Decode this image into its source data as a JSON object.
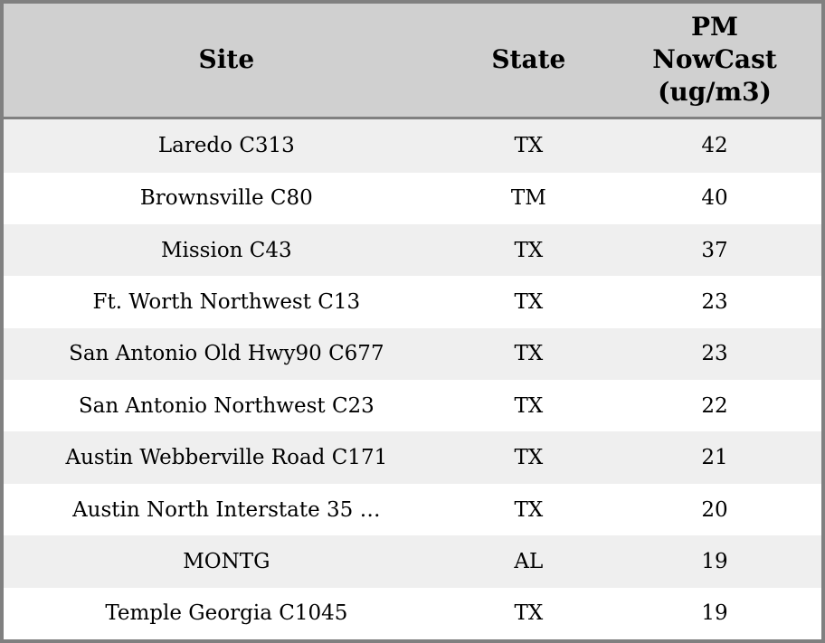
{
  "chart_data": {
    "type": "table",
    "columns": [
      {
        "id": "site",
        "label": "Site"
      },
      {
        "id": "state",
        "label": "State"
      },
      {
        "id": "pm_nowcast",
        "label": "PM\nNowCast\n(ug/m3)",
        "label_plain": "PM NowCast (ug/m3)"
      }
    ],
    "rows": [
      {
        "site": "Laredo C313",
        "state": "TX",
        "pm_nowcast": 42
      },
      {
        "site": "Brownsville C80",
        "state": "TM",
        "pm_nowcast": 40
      },
      {
        "site": "Mission C43",
        "state": "TX",
        "pm_nowcast": 37
      },
      {
        "site": "Ft. Worth Northwest C13",
        "state": "TX",
        "pm_nowcast": 23
      },
      {
        "site": "San Antonio Old Hwy90 C677",
        "state": "TX",
        "pm_nowcast": 23
      },
      {
        "site": "San Antonio Northwest C23",
        "state": "TX",
        "pm_nowcast": 22
      },
      {
        "site": "Austin Webberville Road C171",
        "state": "TX",
        "pm_nowcast": 21
      },
      {
        "site": "Austin North Interstate 35 …",
        "state": "TX",
        "pm_nowcast": 20
      },
      {
        "site": "MONTG",
        "state": "AL",
        "pm_nowcast": 19
      },
      {
        "site": "Temple Georgia C1045",
        "state": "TX",
        "pm_nowcast": 19
      }
    ]
  },
  "colors": {
    "frame_border": "#808080",
    "header_bg": "#d0d0d0",
    "header_divider": "#808080",
    "row_alt_bg": "#efefef",
    "row_bg": "#ffffff",
    "text": "#000000"
  }
}
